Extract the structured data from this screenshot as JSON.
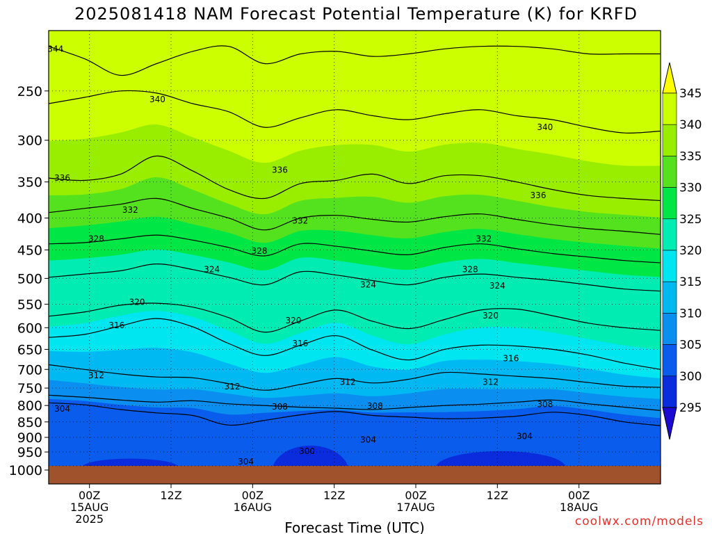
{
  "chart_data": {
    "type": "heatmap",
    "title": "2025081418 NAM Forecast Potential Temperature (K) for KRFD",
    "xlabel": "Forecast Time (UTC)",
    "ylabel": "",
    "credit": "coolwx.com/models",
    "y_scale": "log-pressure",
    "y_range_hpa": [
      200,
      1000
    ],
    "y_ticks": [
      "250",
      "300",
      "350",
      "400",
      "450",
      "500",
      "550",
      "600",
      "650",
      "700",
      "750",
      "800",
      "850",
      "900",
      "950",
      "1000"
    ],
    "x_range_hours": [
      -6,
      84
    ],
    "x_ticks": [
      {
        "hour": 0,
        "lines": [
          "00Z",
          "15AUG",
          "2025"
        ]
      },
      {
        "hour": 12,
        "lines": [
          "12Z"
        ]
      },
      {
        "hour": 24,
        "lines": [
          "00Z",
          "16AUG"
        ]
      },
      {
        "hour": 36,
        "lines": [
          "12Z"
        ]
      },
      {
        "hour": 48,
        "lines": [
          "00Z",
          "17AUG"
        ]
      },
      {
        "hour": 60,
        "lines": [
          "12Z"
        ]
      },
      {
        "hour": 72,
        "lines": [
          "00Z",
          "18AUG"
        ]
      }
    ],
    "colorbar": {
      "labels": [
        "345",
        "340",
        "335",
        "330",
        "325",
        "320",
        "315",
        "310",
        "305",
        "300",
        "295"
      ],
      "colors": [
        "#ffff00",
        "#ccff00",
        "#99ee00",
        "#55e21e",
        "#00e645",
        "#00ecb2",
        "#00e6f0",
        "#00b8f2",
        "#0a8ef0",
        "#0a5ced",
        "#0b2cdc",
        "#1a0ad2"
      ]
    },
    "contour_levels": [
      {
        "theta": 304,
        "p_hpa": [
          792,
          798,
          812,
          822,
          830,
          860,
          845,
          828,
          818,
          830,
          835,
          840,
          838,
          832,
          820,
          830,
          850,
          862
        ]
      },
      {
        "theta": 308,
        "p_hpa": [
          770,
          776,
          784,
          790,
          786,
          795,
          800,
          805,
          808,
          812,
          806,
          800,
          796,
          790,
          784,
          795,
          805,
          815
        ]
      },
      {
        "theta": 312,
        "p_hpa": [
          688,
          700,
          712,
          720,
          722,
          738,
          756,
          740,
          724,
          736,
          726,
          708,
          712,
          718,
          724,
          735,
          745,
          748
        ]
      },
      {
        "theta": 316,
        "p_hpa": [
          622,
          615,
          596,
          580,
          598,
          636,
          665,
          640,
          618,
          652,
          676,
          650,
          640,
          642,
          650,
          664,
          684,
          700
        ]
      },
      {
        "theta": 320,
        "p_hpa": [
          575,
          566,
          552,
          548,
          556,
          578,
          610,
          585,
          562,
          586,
          602,
          582,
          562,
          560,
          574,
          590,
          600,
          606
        ]
      },
      {
        "theta": 324,
        "p_hpa": [
          498,
          492,
          486,
          474,
          484,
          498,
          512,
          488,
          494,
          504,
          512,
          498,
          492,
          498,
          504,
          512,
          520,
          524
        ]
      },
      {
        "theta": 328,
        "p_hpa": [
          440,
          438,
          432,
          426,
          434,
          446,
          460,
          440,
          444,
          452,
          458,
          446,
          440,
          448,
          456,
          462,
          468,
          472
        ]
      },
      {
        "theta": 332,
        "p_hpa": [
          392,
          386,
          380,
          372,
          386,
          400,
          418,
          400,
          396,
          402,
          406,
          398,
          394,
          402,
          410,
          416,
          420,
          425
        ]
      },
      {
        "theta": 336,
        "p_hpa": [
          345,
          348,
          340,
          318,
          336,
          360,
          372,
          352,
          348,
          340,
          352,
          342,
          342,
          350,
          360,
          368,
          372,
          375
        ]
      },
      {
        "theta": 340,
        "p_hpa": [
          262,
          256,
          250,
          252,
          262,
          270,
          286,
          276,
          268,
          274,
          278,
          272,
          268,
          274,
          278,
          286,
          292,
          290
        ]
      },
      {
        "theta": 344,
        "p_hpa": [
          212,
          222,
          236,
          226,
          216,
          212,
          226,
          218,
          216,
          220,
          218,
          214,
          212,
          212,
          214,
          218,
          218,
          218
        ]
      }
    ],
    "contour_labels": [
      {
        "text": "344",
        "hour": -5,
        "p_hpa": 214
      },
      {
        "text": "340",
        "hour": 10,
        "p_hpa": 258
      },
      {
        "text": "340",
        "hour": 67,
        "p_hpa": 286
      },
      {
        "text": "336",
        "hour": -4,
        "p_hpa": 345
      },
      {
        "text": "336",
        "hour": 28,
        "p_hpa": 335
      },
      {
        "text": "336",
        "hour": 66,
        "p_hpa": 368
      },
      {
        "text": "332",
        "hour": 6,
        "p_hpa": 388
      },
      {
        "text": "332",
        "hour": 31,
        "p_hpa": 404
      },
      {
        "text": "332",
        "hour": 58,
        "p_hpa": 432
      },
      {
        "text": "328",
        "hour": 1,
        "p_hpa": 432
      },
      {
        "text": "328",
        "hour": 25,
        "p_hpa": 452
      },
      {
        "text": "328",
        "hour": 56,
        "p_hpa": 484
      },
      {
        "text": "324",
        "hour": 18,
        "p_hpa": 484
      },
      {
        "text": "324",
        "hour": 41,
        "p_hpa": 512
      },
      {
        "text": "324",
        "hour": 60,
        "p_hpa": 514
      },
      {
        "text": "320",
        "hour": 7,
        "p_hpa": 546
      },
      {
        "text": "320",
        "hour": 30,
        "p_hpa": 584
      },
      {
        "text": "320",
        "hour": 59,
        "p_hpa": 574
      },
      {
        "text": "316",
        "hour": 4,
        "p_hpa": 595
      },
      {
        "text": "316",
        "hour": 31,
        "p_hpa": 636
      },
      {
        "text": "316",
        "hour": 62,
        "p_hpa": 672
      },
      {
        "text": "312",
        "hour": 1,
        "p_hpa": 716
      },
      {
        "text": "312",
        "hour": 21,
        "p_hpa": 746
      },
      {
        "text": "312",
        "hour": 38,
        "p_hpa": 734
      },
      {
        "text": "312",
        "hour": 59,
        "p_hpa": 734
      },
      {
        "text": "308",
        "hour": 28,
        "p_hpa": 804
      },
      {
        "text": "308",
        "hour": 42,
        "p_hpa": 802
      },
      {
        "text": "308",
        "hour": 67,
        "p_hpa": 796
      },
      {
        "text": "304",
        "hour": -4,
        "p_hpa": 810
      },
      {
        "text": "304",
        "hour": 41,
        "p_hpa": 908
      },
      {
        "text": "304",
        "hour": 64,
        "p_hpa": 896
      },
      {
        "text": "304",
        "hour": 23,
        "p_hpa": 985
      },
      {
        "text": "300",
        "hour": 32,
        "p_hpa": 948
      }
    ]
  }
}
